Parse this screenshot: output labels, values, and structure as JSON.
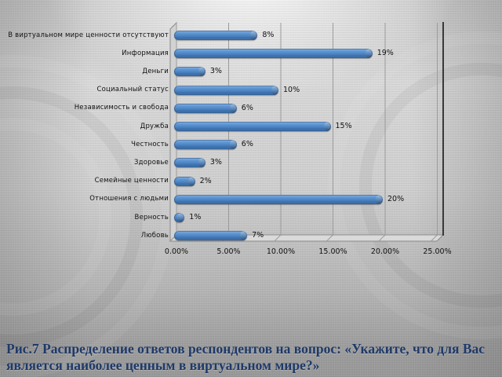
{
  "slide": {
    "caption": "Рис.7 Распределение ответов респондентов на вопрос: «Укажите, что для Вас является наиболее ценным в виртуальном мире?»",
    "caption_color": "#1e3968"
  },
  "chart_data": {
    "type": "bar",
    "orientation": "horizontal",
    "style": "3d-cylinder",
    "title": "",
    "xlabel": "",
    "ylabel": "",
    "categories": [
      "В виртуальном мире ценности отсутствуют",
      "Информация",
      "Деньги",
      "Социальный статус",
      "Независимость и свобода",
      "Дружба",
      "Честность",
      "Здоровье",
      "Семейные ценности",
      "Отношения с людьми",
      "Верность",
      "Любовь"
    ],
    "values": [
      8,
      19,
      3,
      10,
      6,
      15,
      6,
      3,
      2,
      20,
      1,
      7
    ],
    "value_labels": [
      "8%",
      "19%",
      "3%",
      "10%",
      "6%",
      "15%",
      "6%",
      "3%",
      "2%",
      "20%",
      "1%",
      "7%"
    ],
    "x_ticks": [
      "0.00%",
      "5.00%",
      "10.00%",
      "15.00%",
      "20.00%",
      "25.00%"
    ],
    "xlim": [
      0,
      25
    ],
    "grid": true,
    "legend": "none",
    "bar_color": "#4f81bd",
    "gridline_color": "#9b9b9b",
    "plot_right_edge_color": "#3a3a3a"
  }
}
